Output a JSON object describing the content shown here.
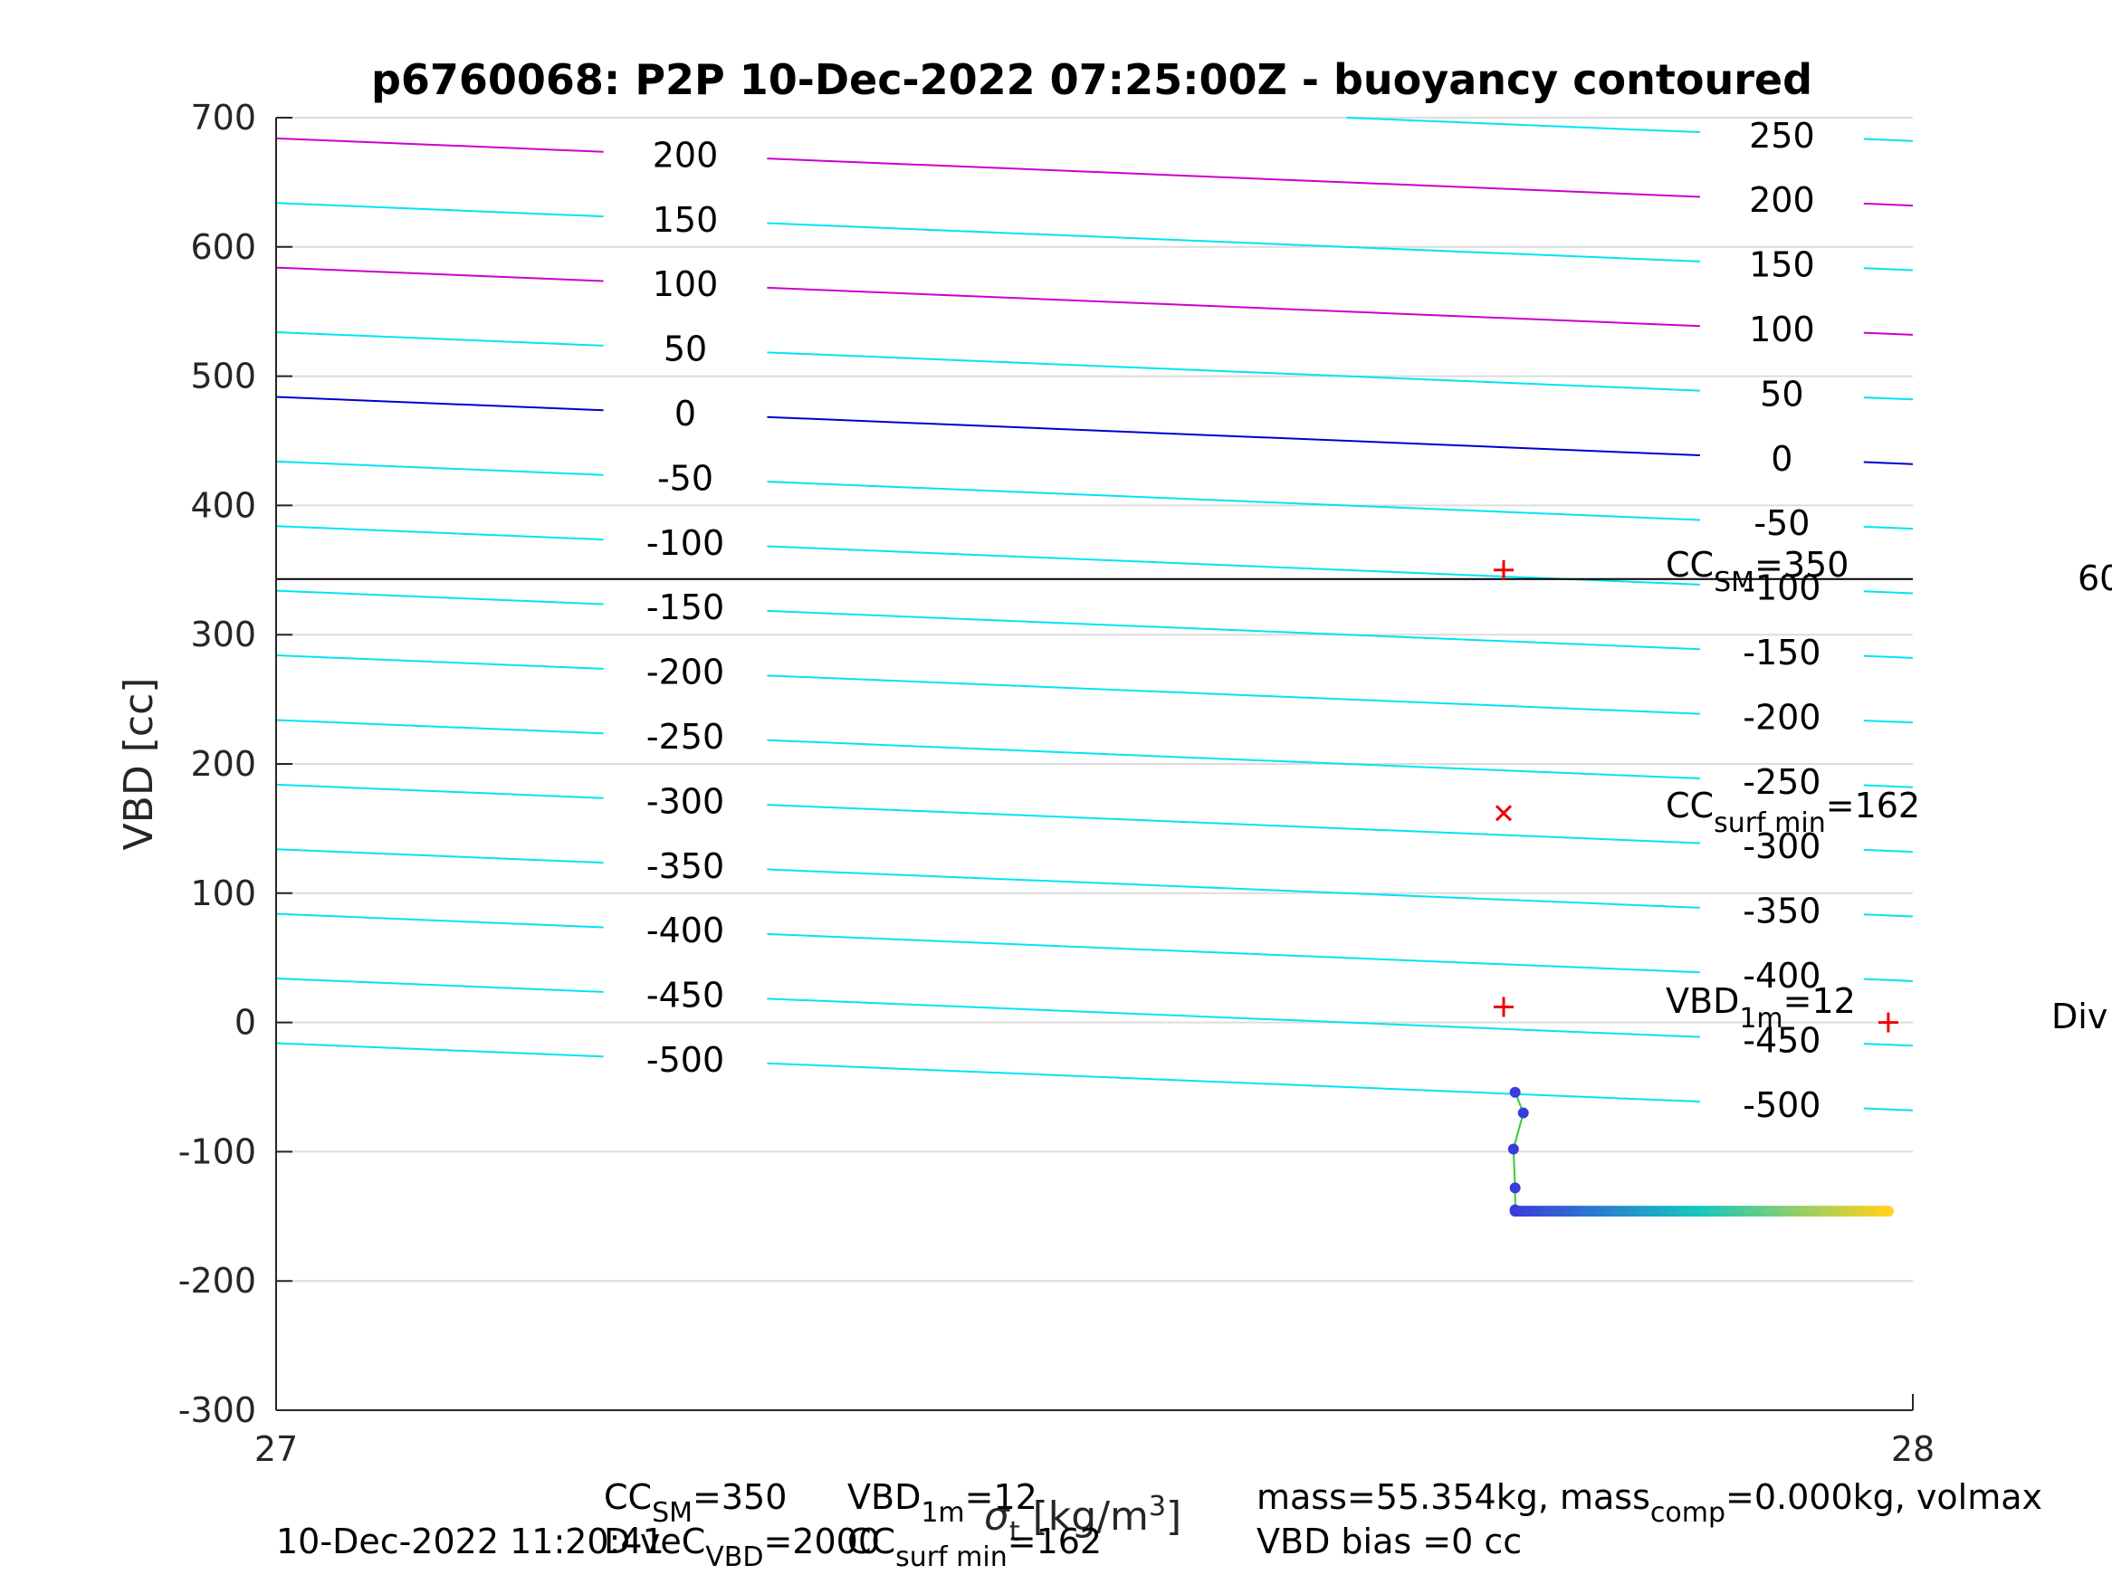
{
  "chart_data": {
    "type": "line",
    "title": "p6760068: P2P 10-Dec-2022 07:25:00Z - buoyancy contoured",
    "xlabel_prefix": "σ",
    "xlabel_sub": "t",
    "xlabel_suffix": " [kg/m",
    "xlabel_sup": "3",
    "xlabel_close": "]",
    "ylabel": "VBD [cc]",
    "xlim": [
      27,
      28
    ],
    "ylim": [
      -300,
      700
    ],
    "x_ticks": [
      "27",
      "28"
    ],
    "y_ticks": [
      "700",
      "600",
      "500",
      "400",
      "300",
      "200",
      "100",
      "0",
      "-100",
      "-200",
      "-300"
    ],
    "y_tick_values": [
      700,
      600,
      500,
      400,
      300,
      200,
      100,
      0,
      -100,
      -200,
      -300
    ],
    "grid": "y",
    "contour_slope_cc_per_unit": -52,
    "contour_base_y_at_x27": 484,
    "contours": [
      {
        "level": -500,
        "label": "-500",
        "color": "#00e5ee"
      },
      {
        "level": -450,
        "label": "-450",
        "color": "#00e5ee"
      },
      {
        "level": -400,
        "label": "-400",
        "color": "#00e5ee"
      },
      {
        "level": -350,
        "label": "-350",
        "color": "#00e5ee"
      },
      {
        "level": -300,
        "label": "-300",
        "color": "#00e5ee"
      },
      {
        "level": -250,
        "label": "-250",
        "color": "#00e5ee"
      },
      {
        "level": -200,
        "label": "-200",
        "color": "#00e5ee"
      },
      {
        "level": -150,
        "label": "-150",
        "color": "#00e5ee"
      },
      {
        "level": -100,
        "label": "-100",
        "color": "#00e5ee"
      },
      {
        "level": -50,
        "label": "-50",
        "color": "#00e5ee"
      },
      {
        "level": 0,
        "label": "0",
        "color": "#0000cc"
      },
      {
        "level": 50,
        "label": "50",
        "color": "#00e5ee"
      },
      {
        "level": 100,
        "label": "100",
        "color": "#cc00cc"
      },
      {
        "level": 150,
        "label": "150",
        "color": "#00e5ee"
      },
      {
        "level": 200,
        "label": "200",
        "color": "#cc00cc"
      },
      {
        "level": 250,
        "label": "250",
        "color": "#00e5ee"
      }
    ],
    "hline": {
      "y": 343,
      "color": "#000000"
    },
    "markers": [
      {
        "name": "cc-sm-marker",
        "x": 27.75,
        "y": 350,
        "symbol": "+",
        "color": "#ee0000"
      },
      {
        "name": "cc-surf-min-marker",
        "x": 27.75,
        "y": 162,
        "symbol": "x",
        "color": "#ee0000"
      },
      {
        "name": "vbd-1m-marker",
        "x": 27.75,
        "y": 12,
        "symbol": "+",
        "color": "#ee0000"
      },
      {
        "name": "div-marker",
        "x": 27.985,
        "y": 0,
        "symbol": "+",
        "color": "#ee0000"
      }
    ],
    "annotations": {
      "cc_sm": {
        "main": "CC",
        "sub": "SM",
        "rest": "=350"
      },
      "cc_surf_min": {
        "main": "CC",
        "sub": "surf min",
        "rest": "=162"
      },
      "vbd_1m": {
        "main": "VBD",
        "sub": "1m",
        "rest": "=12"
      },
      "right_60": "60",
      "right_div": "Div"
    },
    "dive_trace": {
      "color_start": "#3b3bdd",
      "color_end": "#ffd21e",
      "descent_x": [
        27.757,
        27.762,
        27.756,
        27.757,
        27.757
      ],
      "descent_y": [
        -54,
        -70,
        -98,
        -128,
        -145
      ],
      "flat_y": -146,
      "flat_x_start": 27.757,
      "flat_x_end": 27.985,
      "flat_points": 160
    }
  },
  "footer": {
    "timestamp": "10-Dec-2022 11:20:41",
    "line1": {
      "cc_main": "CC",
      "cc_sub": "SM",
      "cc_rest": "=350",
      "vbd_main": "VBD",
      "vbd_sub": "1m",
      "vbd_rest": "=12"
    },
    "line2": {
      "dive_main": "Div",
      "dive_rest": "eC",
      "dive_sub": "VBD",
      "dive_val": "=2000",
      "cc_main": "CC",
      "cc_sub": "surf min",
      "cc_rest": "=162"
    },
    "mass_line": {
      "a": "mass=55.354kg, mass",
      "sub": "comp",
      "b": "=0.000kg, volmax"
    },
    "bias_line": "VBD bias =0 cc"
  }
}
